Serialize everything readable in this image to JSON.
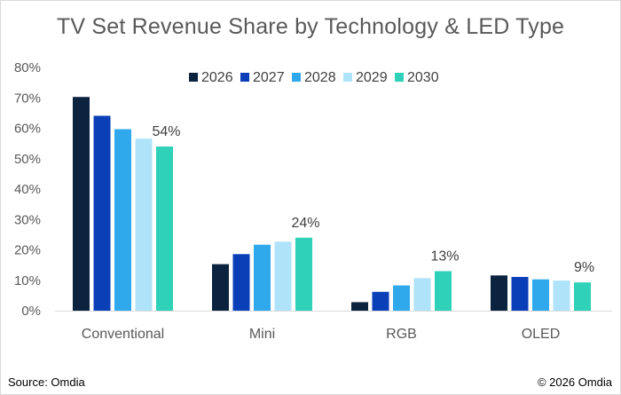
{
  "title": "TV Set Revenue Share by Technology & LED Type",
  "footer": {
    "source": "Source: Omdia",
    "copyright": "© 2026 Omdia"
  },
  "chart_data": {
    "type": "bar",
    "title": "TV Set Revenue Share by Technology & LED Type",
    "xlabel": "",
    "ylabel": "",
    "categories": [
      "Conventional",
      "Mini",
      "RGB",
      "OLED"
    ],
    "ylim": [
      0,
      80
    ],
    "yticks": [
      "0%",
      "10%",
      "20%",
      "30%",
      "40%",
      "50%",
      "60%",
      "70%",
      "80%"
    ],
    "ytick_values": [
      0,
      10,
      20,
      30,
      40,
      50,
      60,
      70,
      80
    ],
    "grid": false,
    "legend_position": "top-right",
    "series": [
      {
        "name": "2026",
        "color": "#0c2340",
        "values": [
          70.3,
          15.3,
          2.8,
          11.6
        ]
      },
      {
        "name": "2027",
        "color": "#0a3fb8",
        "values": [
          64.1,
          18.6,
          6.2,
          11.1
        ]
      },
      {
        "name": "2028",
        "color": "#2fa8ec",
        "values": [
          59.7,
          21.7,
          8.3,
          10.3
        ]
      },
      {
        "name": "2029",
        "color": "#aee3fa",
        "values": [
          56.6,
          22.7,
          10.7,
          9.9
        ]
      },
      {
        "name": "2030",
        "color": "#2fd1b8",
        "values": [
          54.0,
          24.0,
          13.0,
          9.3
        ]
      }
    ],
    "data_labels": [
      {
        "series": "2030",
        "category": "Conventional",
        "text": "54%"
      },
      {
        "series": "2030",
        "category": "Mini",
        "text": "24%"
      },
      {
        "series": "2030",
        "category": "RGB",
        "text": "13%"
      },
      {
        "series": "2030",
        "category": "OLED",
        "text": "9%"
      }
    ]
  }
}
